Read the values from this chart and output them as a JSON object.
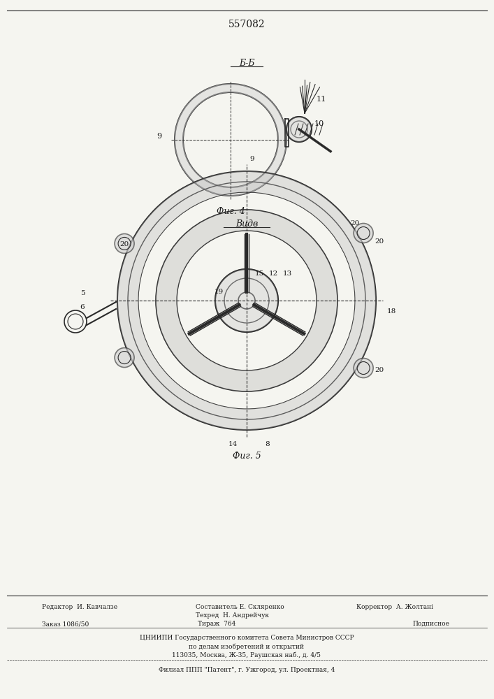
{
  "title_number": "557082",
  "fig4_label": "Б-Б",
  "fig4_caption": "Фиг. 4",
  "fig5_label": "Видв",
  "fig5_caption": "Фиг. 5",
  "footer_line1_left": "Редактор  И. Кавчалзе",
  "footer_line1_center": "Составитель Е. Скляренко",
  "footer_line1_right": "Корректор  А. Жолтані",
  "footer_line2_left": "Заказ 1086/50",
  "footer_line2_center": "Тираж  764",
  "footer_line2_right": "Подписное",
  "footer_line2_center2": "Техред  Н. Андрейчук",
  "footer_org": "ЦНИИПИ Государственного комитета Совета Министров СССР",
  "footer_org2": "по делам изобретений и открытий",
  "footer_address": "113035, Москва, Ж-35, Раушская наб., д. 4/5",
  "footer_plant": "Филиал ППП \"Патент\", г. Ужгород, ул. Проектная, 4",
  "bg_color": "#f5f5f0",
  "line_color": "#2a2a2a",
  "label_color": "#1a1a1a"
}
